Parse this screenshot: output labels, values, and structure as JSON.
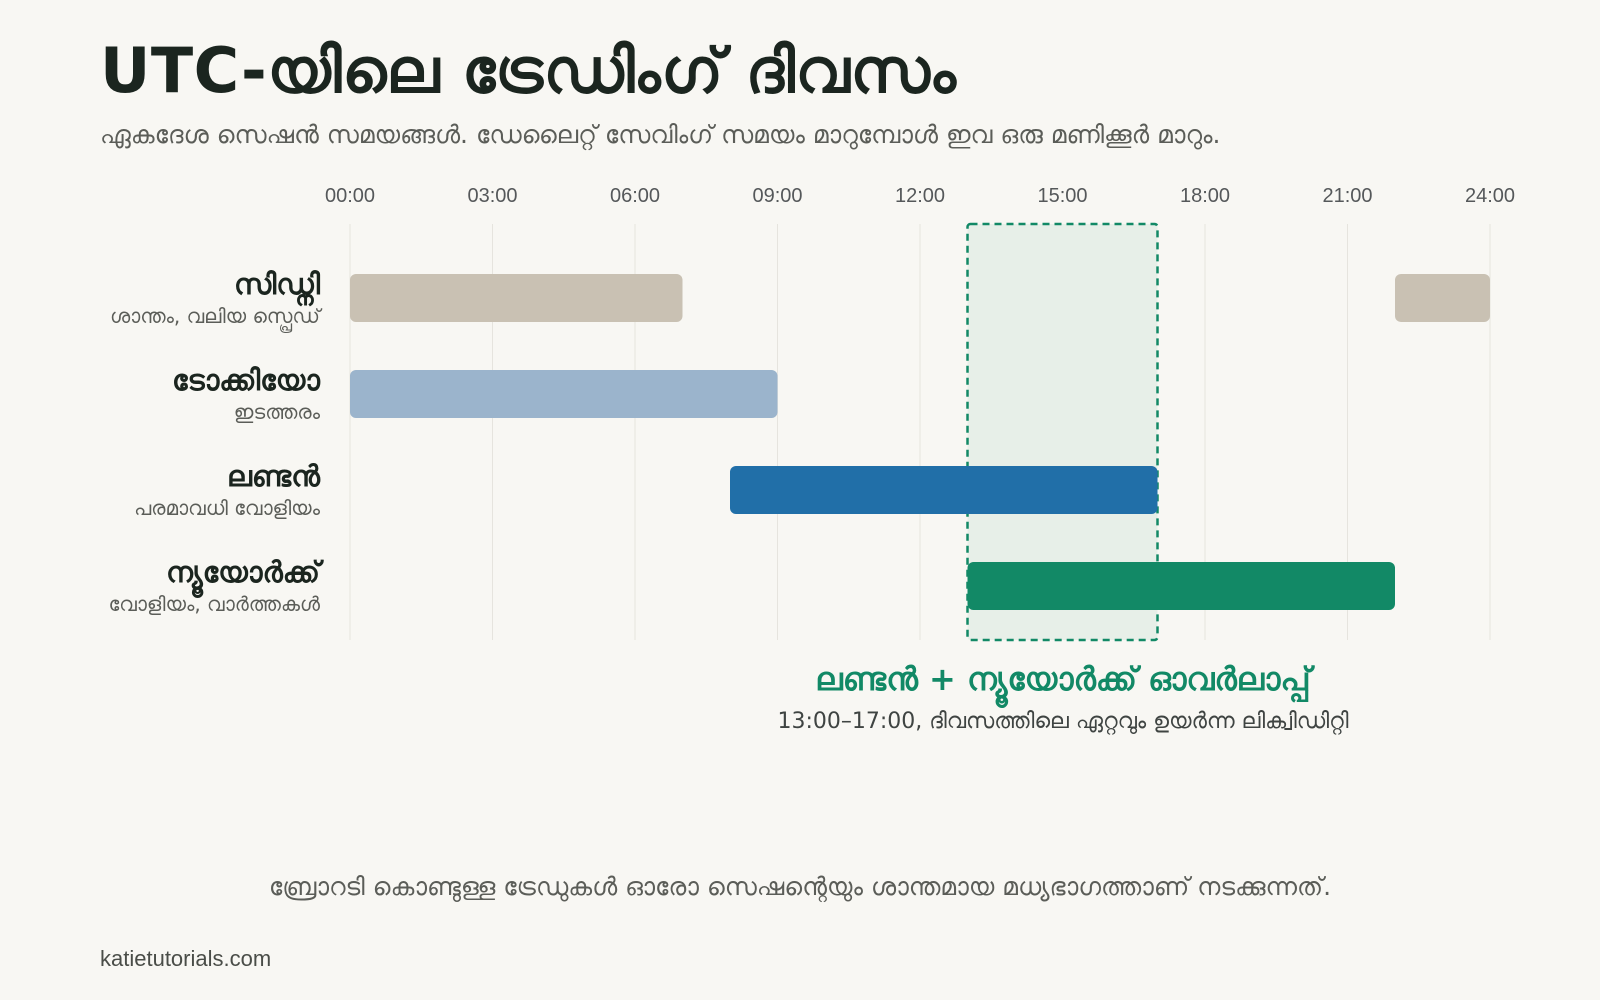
{
  "title": "UTC-യിലെ ട്രേഡിംഗ് ദിവസം",
  "subtitle": "ഏകദേശ സെഷൻ സമയങ്ങൾ. ഡേലൈറ്റ് സേവിംഗ് സമയം മാറുമ്പോൾ ഇവ ഒരു മണിക്കൂർ മാറും.",
  "footnote": "ബ്രോറടി കൊണ്ടുള്ള ട്രേഡുകൾ ഓരോ സെഷന്റെയും ശാന്തമായ മധ്യഭാഗത്താണ് നടക്കുന്നത്.",
  "source": "katietutorials.com",
  "chart_data": {
    "type": "gantt",
    "x_axis": {
      "unit": "hour (UTC)",
      "range": [
        0,
        24
      ],
      "ticks": [
        0,
        3,
        6,
        9,
        12,
        15,
        18,
        21,
        24
      ],
      "tick_labels": [
        "00:00",
        "03:00",
        "06:00",
        "09:00",
        "12:00",
        "15:00",
        "18:00",
        "21:00",
        "24:00"
      ],
      "grid": true
    },
    "sessions": [
      {
        "name": "സിഡ്നി",
        "note": "ശാന്തം, വലിയ സ്പ്രെഡ്",
        "color": "#c9c1b3",
        "intervals": [
          [
            0,
            7
          ],
          [
            22,
            24
          ]
        ]
      },
      {
        "name": "ടോക്കിയോ",
        "note": "ഇടത്തരം",
        "color": "#9bb4cc",
        "intervals": [
          [
            0,
            9
          ]
        ]
      },
      {
        "name": "ലണ്ടൻ",
        "note": "പരമാവധി വോളിയം",
        "color": "#216fa8",
        "intervals": [
          [
            8,
            17
          ]
        ]
      },
      {
        "name": "ന്യൂയോർക്ക്",
        "note": "വോളിയം, വാർത്തകൾ",
        "color": "#128966",
        "intervals": [
          [
            13,
            22
          ]
        ]
      }
    ],
    "highlight": {
      "range": [
        13,
        17
      ],
      "label": "ലണ്ടൻ + ന്യൂയോർക്ക് ഓവർലാപ്പ്",
      "sublabel": "13:00–17:00, ദിവസത്തിലെ ഏറ്റവും ഉയർന്ന ലിക്വിഡിറ്റി",
      "color": "#128966"
    }
  }
}
